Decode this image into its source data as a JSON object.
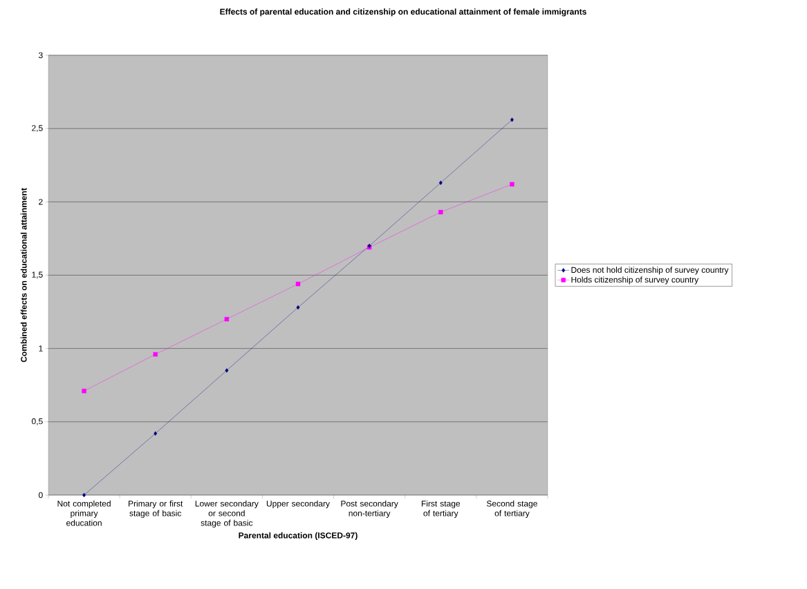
{
  "chart_data": {
    "type": "line",
    "title": "Effects of parental education and citizenship on educational attainment of female immigrants",
    "xlabel": "Parental education (ISCED-97)",
    "ylabel": "Combined effects on educational attainment",
    "categories": [
      "Not completed primary education",
      "Primary or first stage of basic",
      "Lower secondary or second stage of basic",
      "Upper secondary",
      "Post secondary non-tertiary",
      "First stage of tertiary",
      "Second stage of tertiary"
    ],
    "series": [
      {
        "name": "Does not hold citizenship of survey country",
        "color": "#000080",
        "marker": "diamond",
        "values": [
          0.0,
          0.42,
          0.85,
          1.28,
          1.7,
          2.13,
          2.56
        ]
      },
      {
        "name": "Holds citizenship of survey country",
        "color": "#ff00ff",
        "marker": "square",
        "values": [
          0.71,
          0.96,
          1.2,
          1.44,
          1.69,
          1.93,
          2.12
        ]
      }
    ],
    "ylim": [
      0,
      3
    ],
    "yticks": [
      0,
      {
        "value": 0.5,
        "label": "0,5"
      },
      1,
      {
        "value": 1.5,
        "label": "1,5"
      },
      2,
      {
        "value": 2.5,
        "label": "2,5"
      },
      3
    ],
    "grid": "y",
    "legend": "right",
    "line_style": "solid"
  }
}
